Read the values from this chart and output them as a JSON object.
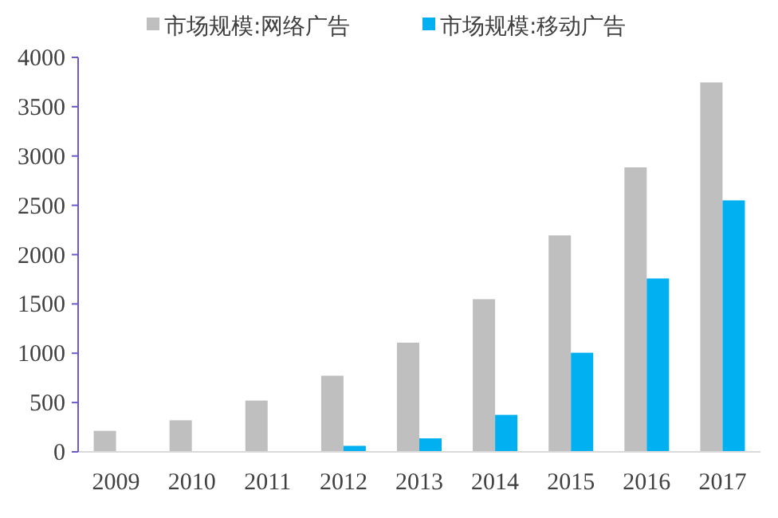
{
  "chart_data": {
    "type": "bar",
    "categories": [
      "2009",
      "2010",
      "2011",
      "2012",
      "2013",
      "2014",
      "2015",
      "2016",
      "2017"
    ],
    "series": [
      {
        "name": "市场规模:网络广告",
        "color": "#bfbfbf",
        "values": [
          213,
          320,
          520,
          772,
          1107,
          1548,
          2195,
          2885,
          3746
        ]
      },
      {
        "name": "市场规模:移动广告",
        "color": "#00b0f0",
        "values": [
          null,
          null,
          null,
          61,
          137,
          375,
          1005,
          1758,
          2550
        ]
      }
    ],
    "ylim": [
      0,
      4000
    ],
    "yticks": [
      0,
      500,
      1000,
      1500,
      2000,
      2500,
      3000,
      3500,
      4000
    ],
    "legend": "top",
    "grid": false
  }
}
